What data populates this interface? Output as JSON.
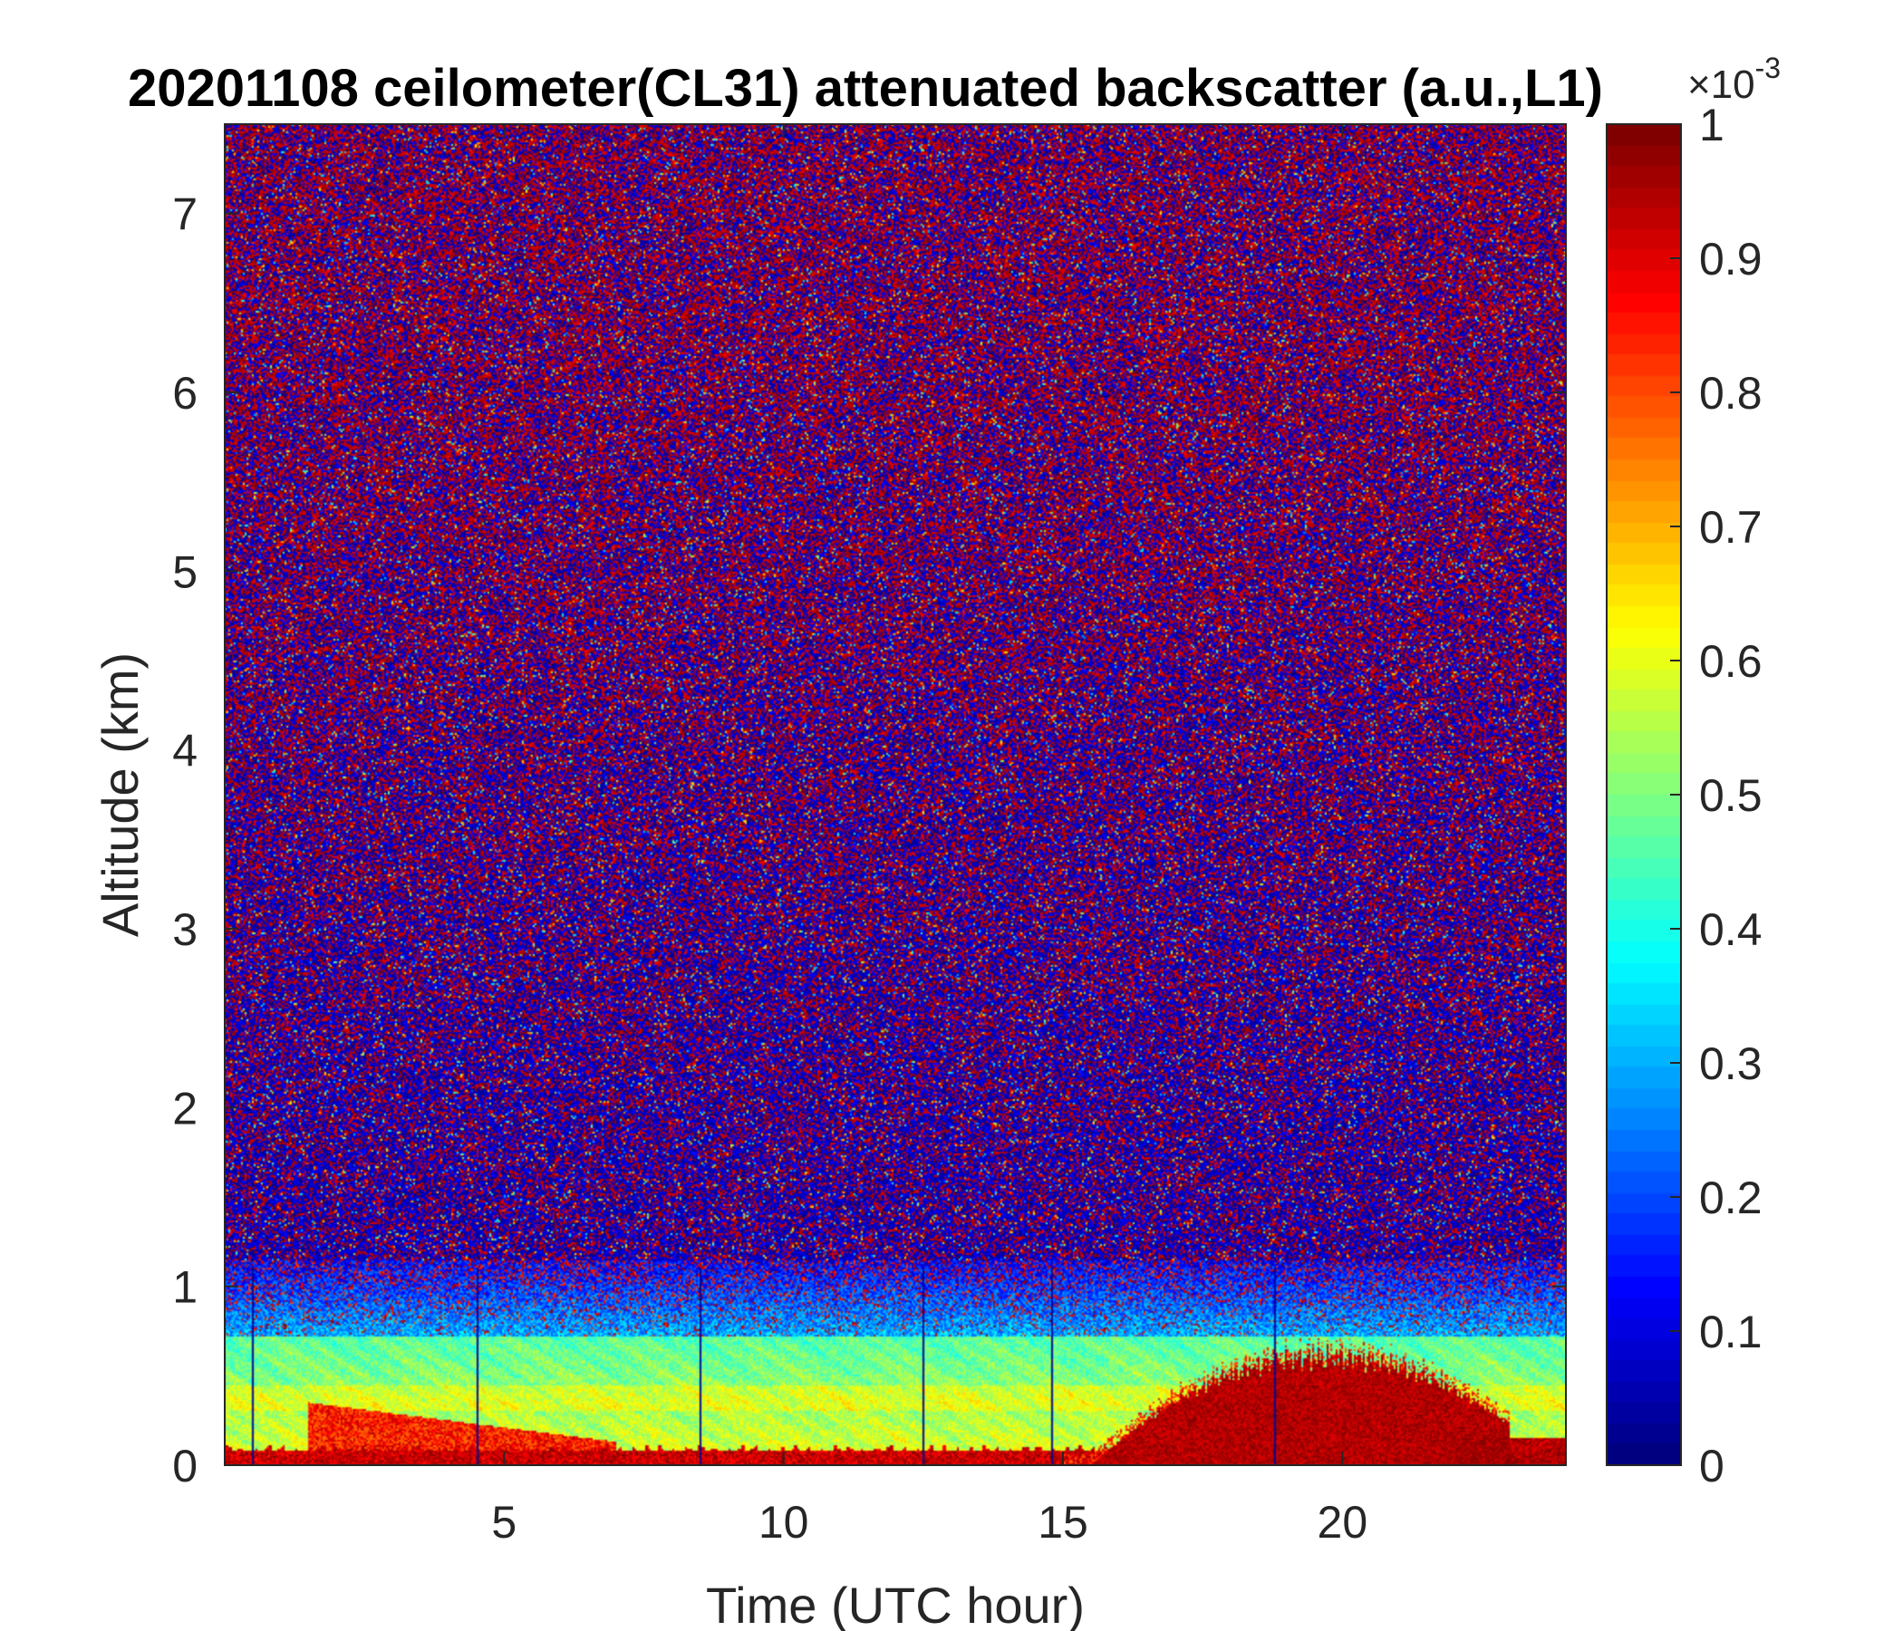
{
  "chart_data": {
    "type": "heatmap",
    "title": "20201108 ceilometer(CL31) attenuated backscatter (a.u.,L1)",
    "xlabel": "Time (UTC hour)",
    "ylabel": "Altitude (km)",
    "xlim": [
      0,
      24
    ],
    "ylim": [
      0,
      7.5
    ],
    "xticks": [
      5,
      10,
      15,
      20
    ],
    "xtick_labels": [
      "5",
      "10",
      "15",
      "20"
    ],
    "yticks": [
      0,
      1,
      2,
      3,
      4,
      5,
      6,
      7
    ],
    "ytick_labels": [
      "0",
      "1",
      "2",
      "3",
      "4",
      "5",
      "6",
      "7"
    ],
    "colormap": "jet",
    "colorbar": {
      "range": [
        0,
        0.001
      ],
      "ticks": [
        0,
        0.1,
        0.2,
        0.3,
        0.4,
        0.5,
        0.6,
        0.7,
        0.8,
        0.9,
        1
      ],
      "tick_labels": [
        "0",
        "0.1",
        "0.2",
        "0.3",
        "0.4",
        "0.5",
        "0.6",
        "0.7",
        "0.8",
        "0.9",
        "1"
      ],
      "exponent_base": "×10",
      "exponent_power": "-3"
    },
    "dropout_times": [
      0.5,
      4.5,
      8.5,
      12.5,
      14.8,
      18.8
    ],
    "features": [
      {
        "description": "aerosol layer near surface",
        "altitude_km": [
          0,
          0.7
        ],
        "value_range": [
          0.00045,
          0.0007
        ]
      },
      {
        "description": "high backscatter plume",
        "time_h": [
          16,
          22
        ],
        "altitude_km": [
          0,
          0.6
        ],
        "value": 0.001
      },
      {
        "description": "noise region above boundary layer",
        "altitude_km": [
          1,
          7.5
        ],
        "value_range": [
          0,
          0.001
        ]
      }
    ],
    "grid": false,
    "legend": "colorbar-right"
  }
}
